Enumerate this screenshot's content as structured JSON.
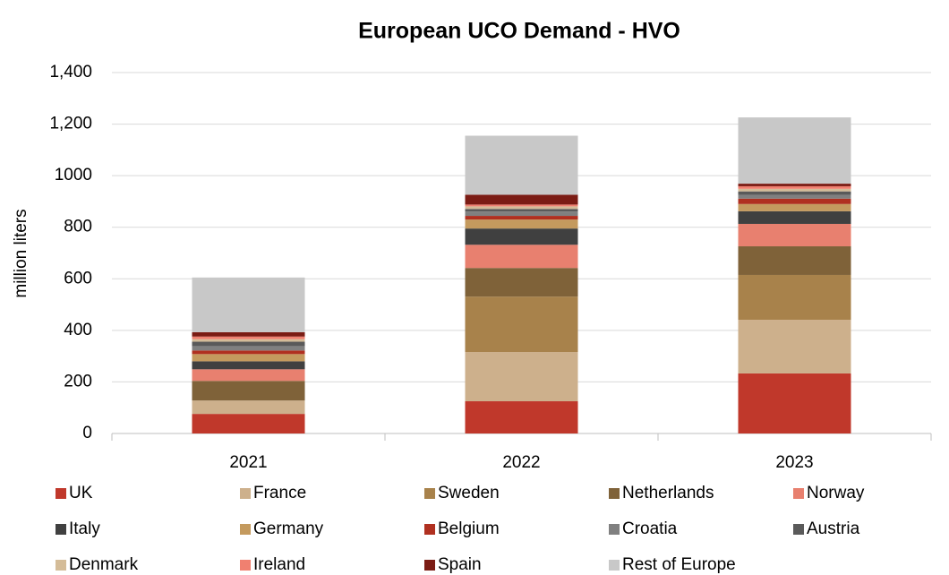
{
  "chart_data": {
    "type": "bar",
    "stacked": true,
    "title": "European UCO Demand - HVO",
    "y_label": "million liters",
    "categories": [
      "2021",
      "2022",
      "2023"
    ],
    "ylim": [
      0,
      1400
    ],
    "yticks": [
      0,
      200,
      400,
      600,
      800,
      1000,
      {
        "value": 1200,
        "label": "1,200"
      },
      {
        "value": 1400,
        "label": "1,400"
      }
    ],
    "series": [
      {
        "name": "UK",
        "color": "#c0382b",
        "values": [
          76,
          125,
          233
        ]
      },
      {
        "name": "France",
        "color": "#cdb08c",
        "values": [
          52,
          191,
          208
        ]
      },
      {
        "name": "Sweden",
        "color": "#a8824b",
        "values": [
          0,
          215,
          174
        ]
      },
      {
        "name": "Netherlands",
        "color": "#7f6239",
        "values": [
          76,
          111,
          111
        ]
      },
      {
        "name": "Norway",
        "color": "#e8806f",
        "values": [
          45,
          90,
          87
        ]
      },
      {
        "name": "Italy",
        "color": "#404040",
        "values": [
          31,
          63,
          49
        ]
      },
      {
        "name": "Germany",
        "color": "#c49a5e",
        "values": [
          28,
          35,
          28
        ]
      },
      {
        "name": "Belgium",
        "color": "#b03020",
        "values": [
          14,
          14,
          21
        ]
      },
      {
        "name": "Croatia",
        "color": "#808080",
        "values": [
          17,
          17,
          14
        ]
      },
      {
        "name": "Austria",
        "color": "#5a5a5a",
        "values": [
          17,
          10,
          14
        ]
      },
      {
        "name": "Denmark",
        "color": "#d4bc98",
        "values": [
          10,
          10,
          10
        ]
      },
      {
        "name": "Ireland",
        "color": "#f08070",
        "values": [
          10,
          7,
          10
        ]
      },
      {
        "name": "Spain",
        "color": "#7b1c14",
        "values": [
          17,
          38,
          10
        ]
      },
      {
        "name": "Rest of Europe",
        "color": "#c8c8c8",
        "values": [
          212,
          229,
          257
        ]
      }
    ],
    "grid": true,
    "legend": "bottom"
  }
}
